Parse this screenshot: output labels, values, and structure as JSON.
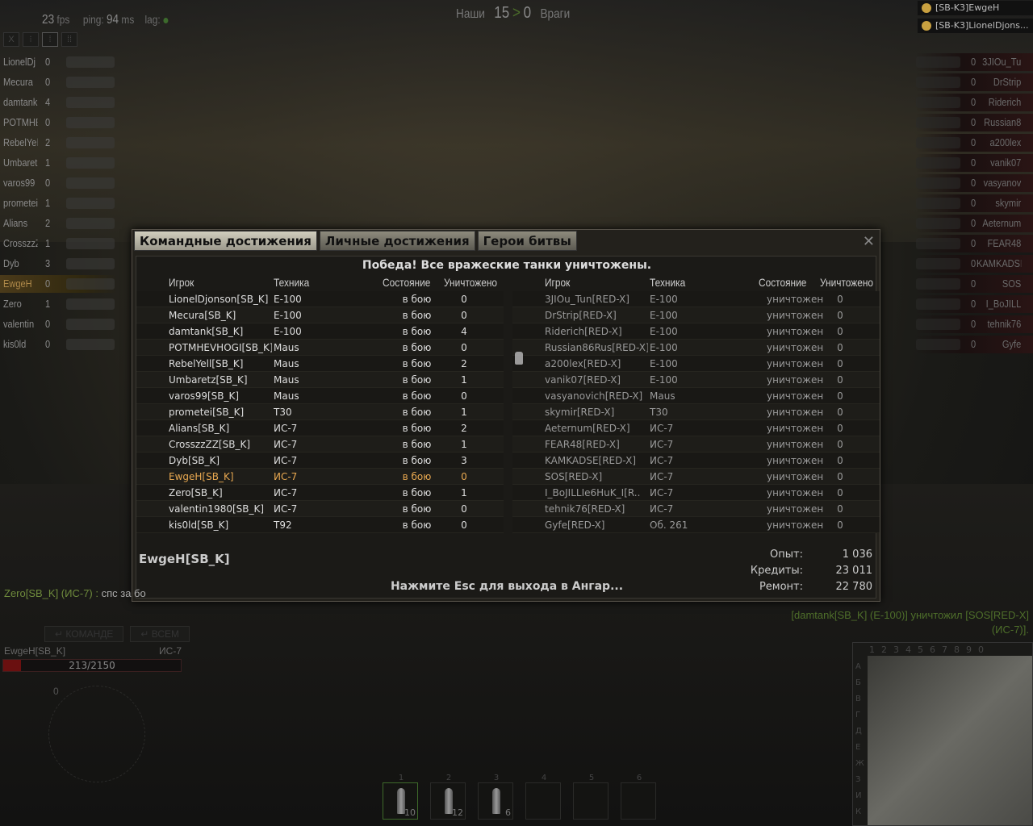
{
  "hud": {
    "fps": "23",
    "fps_unit": "fps",
    "ping_label": "ping:",
    "ping": "94",
    "ping_unit": "ms",
    "lag_label": "lag:",
    "score": {
      "ours_label": "Наши",
      "ours": "15",
      "sep": ">",
      "theirs": "0",
      "theirs_label": "Враги"
    },
    "modes": [
      "X",
      "⁝",
      "⁞",
      "⁞⁞"
    ]
  },
  "platoon": [
    "[SB-K3]EwgeH",
    "[SB-K3]LionelDjons..."
  ],
  "left_team": [
    {
      "name": "LionelDj",
      "frags": "0"
    },
    {
      "name": "Mecura",
      "frags": "0"
    },
    {
      "name": "damtank",
      "frags": "4"
    },
    {
      "name": "POTMHE'",
      "frags": "0"
    },
    {
      "name": "RebelYel",
      "frags": "2"
    },
    {
      "name": "Umbaretz",
      "frags": "1"
    },
    {
      "name": "varos99",
      "frags": "0"
    },
    {
      "name": "prometei",
      "frags": "1"
    },
    {
      "name": "Alians",
      "frags": "2"
    },
    {
      "name": "CrosszzZ",
      "frags": "1"
    },
    {
      "name": "Dyb",
      "frags": "3"
    },
    {
      "name": "EwgeH",
      "frags": "0",
      "me": true
    },
    {
      "name": "Zero",
      "frags": "1"
    },
    {
      "name": "valentin",
      "frags": "0"
    },
    {
      "name": "kis0ld",
      "frags": "0"
    }
  ],
  "right_team": [
    {
      "name": "3JIOu_Tu",
      "frags": "0"
    },
    {
      "name": "DrStrip",
      "frags": "0"
    },
    {
      "name": "Riderich",
      "frags": "0"
    },
    {
      "name": "Russian8",
      "frags": "0"
    },
    {
      "name": "a200lex",
      "frags": "0"
    },
    {
      "name": "vanik07",
      "frags": "0"
    },
    {
      "name": "vasyanov",
      "frags": "0"
    },
    {
      "name": "skymir",
      "frags": "0"
    },
    {
      "name": "Aeternum",
      "frags": "0"
    },
    {
      "name": "FEAR48",
      "frags": "0"
    },
    {
      "name": "KAMKADSE",
      "frags": "0"
    },
    {
      "name": "SOS",
      "frags": "0"
    },
    {
      "name": "I_BoJILL",
      "frags": "0"
    },
    {
      "name": "tehnik76",
      "frags": "0"
    },
    {
      "name": "Gyfe",
      "frags": "0"
    }
  ],
  "dialog": {
    "tabs": [
      "Командные достижения",
      "Личные достижения",
      "Герои битвы"
    ],
    "message": "Победа! Все вражеские танки уничтожены.",
    "headers": [
      "Игрок",
      "Техника",
      "Состояние",
      "Уничтожено"
    ],
    "allies": [
      [
        "LionelDjonson[SB_K]",
        "E-100",
        "в бою",
        "0"
      ],
      [
        "Mecura[SB_K]",
        "E-100",
        "в бою",
        "0"
      ],
      [
        "damtank[SB_K]",
        "E-100",
        "в бою",
        "4"
      ],
      [
        "POTMHEVHOGI[SB_K]",
        "Maus",
        "в бою",
        "0"
      ],
      [
        "RebelYell[SB_K]",
        "Maus",
        "в бою",
        "2"
      ],
      [
        "Umbaretz[SB_K]",
        "Maus",
        "в бою",
        "1"
      ],
      [
        "varos99[SB_K]",
        "Maus",
        "в бою",
        "0"
      ],
      [
        "prometei[SB_K]",
        "T30",
        "в бою",
        "1"
      ],
      [
        "Alians[SB_K]",
        "ИС-7",
        "в бою",
        "2"
      ],
      [
        "CrosszzZZ[SB_K]",
        "ИС-7",
        "в бою",
        "1"
      ],
      [
        "Dyb[SB_K]",
        "ИС-7",
        "в бою",
        "3"
      ],
      [
        "EwgeH[SB_K]",
        "ИС-7",
        "в бою",
        "0"
      ],
      [
        "Zero[SB_K]",
        "ИС-7",
        "в бою",
        "1"
      ],
      [
        "valentin1980[SB_K]",
        "ИС-7",
        "в бою",
        "0"
      ],
      [
        "kis0ld[SB_K]",
        "T92",
        "в бою",
        "0"
      ]
    ],
    "allies_highlight": 11,
    "enemies": [
      [
        "3JIOu_Tun[RED-X]",
        "E-100",
        "уничтожен",
        "0"
      ],
      [
        "DrStrip[RED-X]",
        "E-100",
        "уничтожен",
        "0"
      ],
      [
        "Riderich[RED-X]",
        "E-100",
        "уничтожен",
        "0"
      ],
      [
        "Russian86Rus[RED-X]",
        "E-100",
        "уничтожен",
        "0"
      ],
      [
        "a200lex[RED-X]",
        "E-100",
        "уничтожен",
        "0"
      ],
      [
        "vanik07[RED-X]",
        "E-100",
        "уничтожен",
        "0"
      ],
      [
        "vasyanovich[RED-X]",
        "Maus",
        "уничтожен",
        "0"
      ],
      [
        "skymir[RED-X]",
        "T30",
        "уничтожен",
        "0"
      ],
      [
        "Aeternum[RED-X]",
        "ИС-7",
        "уничтожен",
        "0"
      ],
      [
        "FEAR48[RED-X]",
        "ИС-7",
        "уничтожен",
        "0"
      ],
      [
        "KAMKADSE[RED-X]",
        "ИС-7",
        "уничтожен",
        "0"
      ],
      [
        "SOS[RED-X]",
        "ИС-7",
        "уничтожен",
        "0"
      ],
      [
        "I_BoJILLIe6HuK_I[R..",
        "ИС-7",
        "уничтожен",
        "0"
      ],
      [
        "tehnik76[RED-X]",
        "ИС-7",
        "уничтожен",
        "0"
      ],
      [
        "Gyfe[RED-X]",
        "Об. 261",
        "уничтожен",
        "0"
      ]
    ],
    "player": "EwgeH[SB_K]",
    "results": [
      {
        "label": "Опыт:",
        "value": "1 036"
      },
      {
        "label": "Кредиты:",
        "value": "23 011"
      },
      {
        "label": "Ремонт:",
        "value": "22 780"
      }
    ],
    "esc_hint": "Нажмите Esc для выхода в Ангар..."
  },
  "chat": {
    "sender": "Zero[SB_K] (ИС-7) :",
    "text": " спс за бо",
    "buttons": [
      "↵ КОМАНДЕ",
      "↵ ВСЕМ"
    ]
  },
  "kill_log": "[damtank[SB_K] (E-100)] уничтожил [SOS[RED-X] (ИС-7)].",
  "my_tank": {
    "name": "EwgeH[SB_K]",
    "vehicle": "ИС-7",
    "hp": "213/2150",
    "hp_fraction": 0.099,
    "speed": "0"
  },
  "minimap": {
    "cols": [
      "1",
      "2",
      "3",
      "4",
      "5",
      "6",
      "7",
      "8",
      "9",
      "0"
    ],
    "rows": [
      "A",
      "Б",
      "В",
      "Г",
      "Д",
      "Е",
      "Ж",
      "З",
      "И",
      "К"
    ]
  },
  "ammo": [
    {
      "key": "1",
      "count": "10",
      "selected": true
    },
    {
      "key": "2",
      "count": "12"
    },
    {
      "key": "3",
      "count": "6"
    },
    {
      "key": "4",
      "count": ""
    },
    {
      "key": "5",
      "count": ""
    },
    {
      "key": "6",
      "count": ""
    }
  ],
  "colors": {
    "highlight": "#e8a850",
    "ally_green": "#6e8a3c",
    "enemy_red": "#2a1414"
  }
}
